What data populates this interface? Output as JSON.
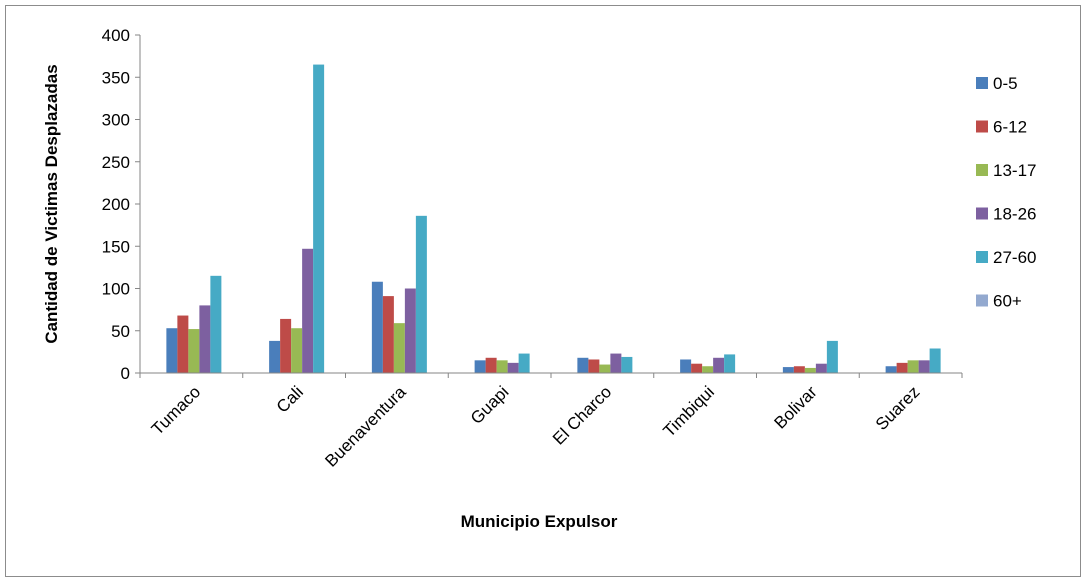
{
  "chart_data": {
    "type": "bar",
    "title": "",
    "xlabel": "Municipio Expulsor",
    "ylabel": "Cantidad de Victimas Desplazadas",
    "ylim": [
      0,
      400
    ],
    "yticks": [
      0,
      50,
      100,
      150,
      200,
      250,
      300,
      350,
      400
    ],
    "grid": false,
    "legend_position": "right",
    "categories": [
      "Tumaco",
      "Cali",
      "Buenaventura",
      "Guapi",
      "El Charco",
      "Timbiqui",
      "Bolivar",
      "Suarez"
    ],
    "series": [
      {
        "name": "0-5",
        "color": "#4a7ebb",
        "values": [
          53,
          38,
          108,
          15,
          18,
          16,
          7,
          8
        ]
      },
      {
        "name": "6-12",
        "color": "#be4b48",
        "values": [
          68,
          64,
          91,
          18,
          16,
          11,
          8,
          12
        ]
      },
      {
        "name": "13-17",
        "color": "#98b954",
        "values": [
          52,
          53,
          59,
          15,
          10,
          8,
          6,
          15
        ]
      },
      {
        "name": "18-26",
        "color": "#7d60a0",
        "values": [
          80,
          147,
          100,
          12,
          23,
          18,
          11,
          15
        ]
      },
      {
        "name": "27-60",
        "color": "#46aac5",
        "values": [
          115,
          365,
          186,
          23,
          19,
          22,
          38,
          29
        ]
      },
      {
        "name": "60+",
        "color": "#93a9cf",
        "values": [
          0,
          0,
          0,
          0,
          0,
          0,
          0,
          0
        ]
      }
    ]
  }
}
